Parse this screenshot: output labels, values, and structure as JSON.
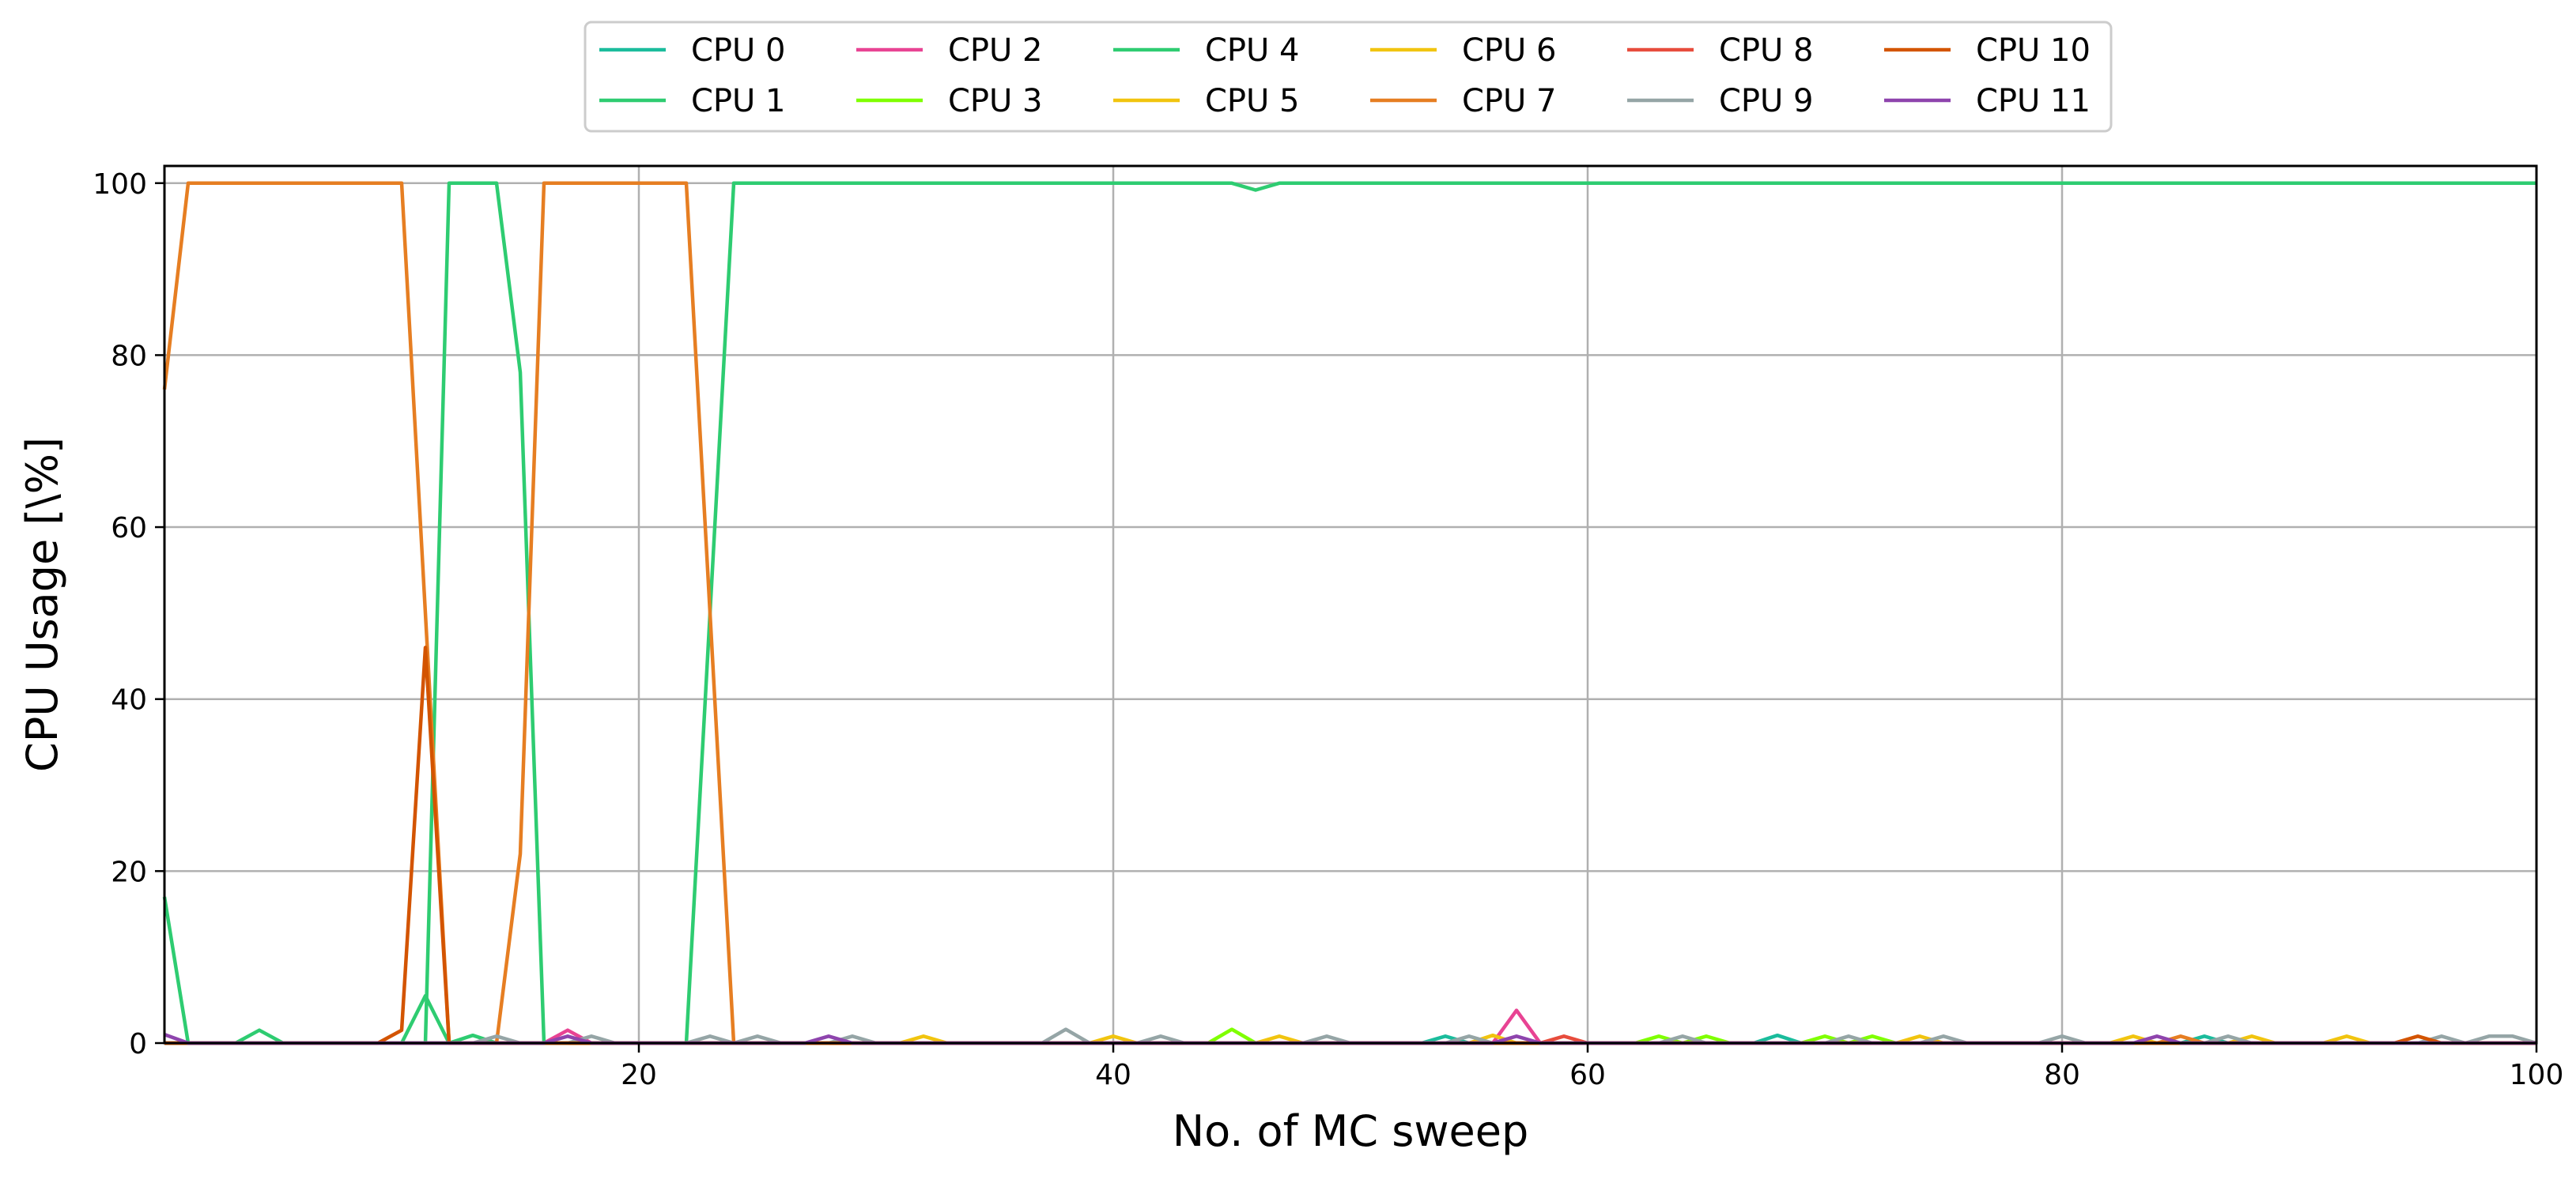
{
  "chart_data": {
    "type": "line",
    "xlabel": "No. of MC sweep",
    "ylabel": "CPU Usage [\\%]",
    "xlim": [
      0,
      100
    ],
    "ylim": [
      0,
      102
    ],
    "xticks": [
      20,
      40,
      60,
      80,
      100
    ],
    "yticks": [
      0,
      20,
      40,
      60,
      80,
      100
    ],
    "grid": true,
    "legend": {
      "position": "top-center",
      "columns": 6
    },
    "series": [
      {
        "name": "CPU 0",
        "color": "#1abc9c",
        "points": [
          [
            0,
            0
          ],
          [
            53,
            0
          ],
          [
            54,
            0.8
          ],
          [
            55,
            0
          ],
          [
            67,
            0
          ],
          [
            68,
            0.9
          ],
          [
            69,
            0
          ],
          [
            85,
            0
          ],
          [
            86,
            0.8
          ],
          [
            87,
            0
          ],
          [
            100,
            0
          ]
        ]
      },
      {
        "name": "CPU 1",
        "color": "#2ecc71",
        "points": [
          [
            0,
            17
          ],
          [
            1,
            0
          ],
          [
            3,
            0
          ],
          [
            4,
            1.5
          ],
          [
            5,
            0
          ],
          [
            10,
            0
          ],
          [
            11,
            5.5
          ],
          [
            12,
            0
          ],
          [
            13,
            0.9
          ],
          [
            14,
            0
          ],
          [
            100,
            0
          ]
        ]
      },
      {
        "name": "CPU 2",
        "color": "#e84393",
        "points": [
          [
            0,
            0
          ],
          [
            16,
            0
          ],
          [
            17,
            1.5
          ],
          [
            18,
            0
          ],
          [
            56,
            0
          ],
          [
            57,
            3.8
          ],
          [
            58,
            0
          ],
          [
            100,
            0
          ]
        ]
      },
      {
        "name": "CPU 3",
        "color": "#7fff00",
        "points": [
          [
            0,
            0
          ],
          [
            44,
            0
          ],
          [
            45,
            1.6
          ],
          [
            46,
            0
          ],
          [
            62,
            0
          ],
          [
            63,
            0.8
          ],
          [
            64,
            0
          ],
          [
            65,
            0.8
          ],
          [
            66,
            0
          ],
          [
            69,
            0
          ],
          [
            70,
            0.8
          ],
          [
            71,
            0
          ],
          [
            72,
            0.8
          ],
          [
            73,
            0
          ],
          [
            100,
            0
          ]
        ]
      },
      {
        "name": "CPU 4",
        "color": "#2ecc71",
        "points": [
          [
            0,
            0
          ],
          [
            11,
            0
          ],
          [
            12,
            100
          ],
          [
            14,
            100
          ],
          [
            15,
            78
          ],
          [
            16,
            0
          ],
          [
            22,
            0
          ],
          [
            24,
            100
          ],
          [
            45,
            100
          ],
          [
            46,
            99.2
          ],
          [
            47,
            100
          ],
          [
            100,
            100
          ]
        ]
      },
      {
        "name": "CPU 5",
        "color": "#f1c40f",
        "points": [
          [
            0,
            0
          ],
          [
            31,
            0
          ],
          [
            32,
            0.8
          ],
          [
            33,
            0
          ],
          [
            39,
            0
          ],
          [
            40,
            0.8
          ],
          [
            41,
            0
          ],
          [
            46,
            0
          ],
          [
            47,
            0.8
          ],
          [
            48,
            0
          ],
          [
            55,
            0
          ],
          [
            56,
            0.9
          ],
          [
            57,
            0
          ],
          [
            73,
            0
          ],
          [
            74,
            0.8
          ],
          [
            75,
            0
          ],
          [
            82,
            0
          ],
          [
            83,
            0.8
          ],
          [
            84,
            0
          ],
          [
            87,
            0
          ],
          [
            88,
            0.8
          ],
          [
            89,
            0
          ],
          [
            91,
            0
          ],
          [
            92,
            0.8
          ],
          [
            93,
            0
          ],
          [
            100,
            0
          ]
        ]
      },
      {
        "name": "CPU 6",
        "color": "#f1c40f",
        "points": [
          [
            0,
            0
          ],
          [
            100,
            0
          ]
        ]
      },
      {
        "name": "CPU 7",
        "color": "#e67e22",
        "points": [
          [
            0,
            76
          ],
          [
            1,
            100
          ],
          [
            10,
            100
          ],
          [
            12,
            0
          ],
          [
            14,
            0
          ],
          [
            15,
            22
          ],
          [
            16,
            100
          ],
          [
            22,
            100
          ],
          [
            24,
            0
          ],
          [
            84,
            0
          ],
          [
            85,
            0.8
          ],
          [
            86,
            0
          ],
          [
            100,
            0
          ]
        ]
      },
      {
        "name": "CPU 8",
        "color": "#e74c3c",
        "points": [
          [
            0,
            0
          ],
          [
            58,
            0
          ],
          [
            59,
            0.8
          ],
          [
            60,
            0
          ],
          [
            100,
            0
          ]
        ]
      },
      {
        "name": "CPU 9",
        "color": "#95a5a6",
        "points": [
          [
            0,
            0
          ],
          [
            13,
            0
          ],
          [
            14,
            0.8
          ],
          [
            15,
            0
          ],
          [
            17,
            0
          ],
          [
            18,
            0.8
          ],
          [
            19,
            0
          ],
          [
            22,
            0
          ],
          [
            23,
            0.8
          ],
          [
            24,
            0
          ],
          [
            25,
            0.8
          ],
          [
            26,
            0
          ],
          [
            28,
            0
          ],
          [
            29,
            0.8
          ],
          [
            30,
            0
          ],
          [
            37,
            0
          ],
          [
            38,
            1.6
          ],
          [
            39,
            0
          ],
          [
            41,
            0
          ],
          [
            42,
            0.8
          ],
          [
            43,
            0
          ],
          [
            48,
            0
          ],
          [
            49,
            0.8
          ],
          [
            50,
            0
          ],
          [
            54,
            0
          ],
          [
            55,
            0.8
          ],
          [
            56,
            0
          ],
          [
            63,
            0
          ],
          [
            64,
            0.8
          ],
          [
            65,
            0
          ],
          [
            70,
            0
          ],
          [
            71,
            0.8
          ],
          [
            72,
            0
          ],
          [
            74,
            0
          ],
          [
            75,
            0.8
          ],
          [
            76,
            0
          ],
          [
            79,
            0
          ],
          [
            80,
            0.8
          ],
          [
            81,
            0
          ],
          [
            86,
            0
          ],
          [
            87,
            0.8
          ],
          [
            88,
            0
          ],
          [
            95,
            0
          ],
          [
            96,
            0.8
          ],
          [
            97,
            0
          ],
          [
            98,
            0.8
          ],
          [
            99,
            0.8
          ],
          [
            100,
            0
          ]
        ]
      },
      {
        "name": "CPU 10",
        "color": "#d35400",
        "points": [
          [
            0,
            0
          ],
          [
            9,
            0
          ],
          [
            10,
            1.5
          ],
          [
            11,
            46
          ],
          [
            12,
            0
          ],
          [
            94,
            0
          ],
          [
            95,
            0.8
          ],
          [
            96,
            0
          ],
          [
            100,
            0
          ]
        ]
      },
      {
        "name": "CPU 11",
        "color": "#8e44ad",
        "points": [
          [
            0,
            1
          ],
          [
            1,
            0
          ],
          [
            16,
            0
          ],
          [
            17,
            0.8
          ],
          [
            18,
            0
          ],
          [
            27,
            0
          ],
          [
            28,
            0.8
          ],
          [
            29,
            0
          ],
          [
            56,
            0
          ],
          [
            57,
            0.8
          ],
          [
            58,
            0
          ],
          [
            83,
            0
          ],
          [
            84,
            0.8
          ],
          [
            85,
            0
          ],
          [
            100,
            0
          ]
        ]
      }
    ]
  }
}
